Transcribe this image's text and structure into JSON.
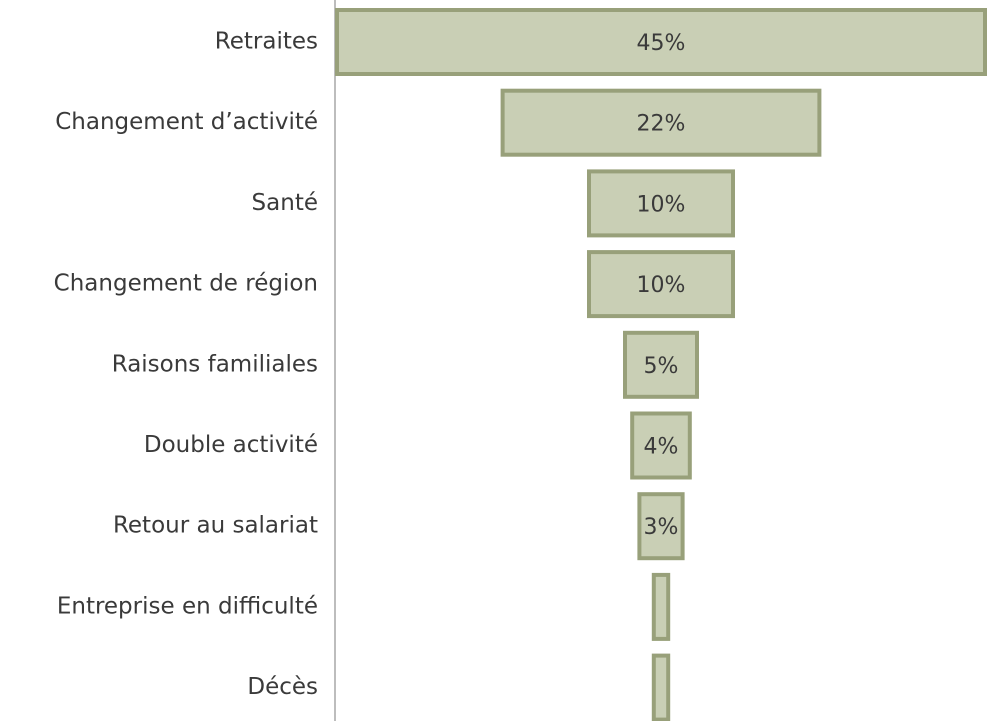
{
  "chart_data": {
    "type": "funnel",
    "categories": [
      "Retraites",
      "Changement d’activité",
      "Santé",
      "Changement de région",
      "Raisons familiales",
      "Double activité",
      "Retour au salariat",
      "Entreprise en difficulté",
      "Décès"
    ],
    "values": [
      45,
      22,
      10,
      10,
      5,
      4,
      3,
      1,
      1
    ],
    "value_labels": [
      "45%",
      "22%",
      "10%",
      "10%",
      "5%",
      "4%",
      "3%",
      null,
      null
    ],
    "color": "#c9cfb5",
    "edge_color": "#98a07a"
  }
}
